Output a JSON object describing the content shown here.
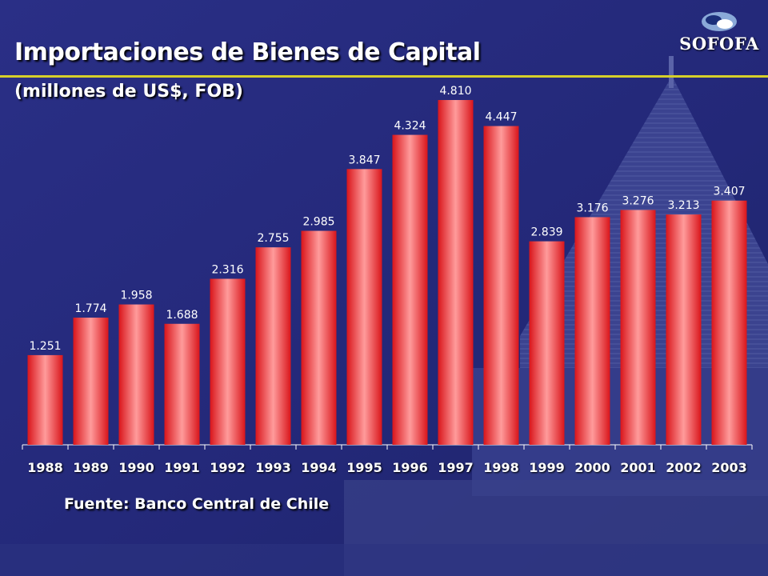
{
  "header": {
    "title": "Importaciones de Bienes de Capital",
    "subtitle": "(millones de US$, FOB)",
    "logo_text": "SOFOFA"
  },
  "footer": {
    "source": "Fuente: Banco Central de Chile"
  },
  "colors": {
    "background": "#24297a",
    "bar": "#e8262a",
    "title_rule": "#d6cf2a",
    "text": "#ffffff"
  },
  "chart_data": {
    "type": "bar",
    "title": "Importaciones de Bienes de Capital",
    "subtitle": "(millones de US$, FOB)",
    "xlabel": "",
    "ylabel": "",
    "ylim": [
      0,
      5000
    ],
    "grid": false,
    "legend": "none",
    "categories": [
      "1988",
      "1989",
      "1990",
      "1991",
      "1992",
      "1993",
      "1994",
      "1995",
      "1996",
      "1997",
      "1998",
      "1999",
      "2000",
      "2001",
      "2002",
      "2003"
    ],
    "values": [
      1251,
      1774,
      1958,
      1688,
      2316,
      2755,
      2985,
      3847,
      4324,
      4810,
      4447,
      2839,
      3176,
      3276,
      3213,
      3407
    ],
    "value_labels": [
      "1.251",
      "1.774",
      "1.958",
      "1.688",
      "2.316",
      "2.755",
      "2.985",
      "3.847",
      "4.324",
      "4.810",
      "4.447",
      "2.839",
      "3.176",
      "3.276",
      "3.213",
      "3.407"
    ]
  }
}
